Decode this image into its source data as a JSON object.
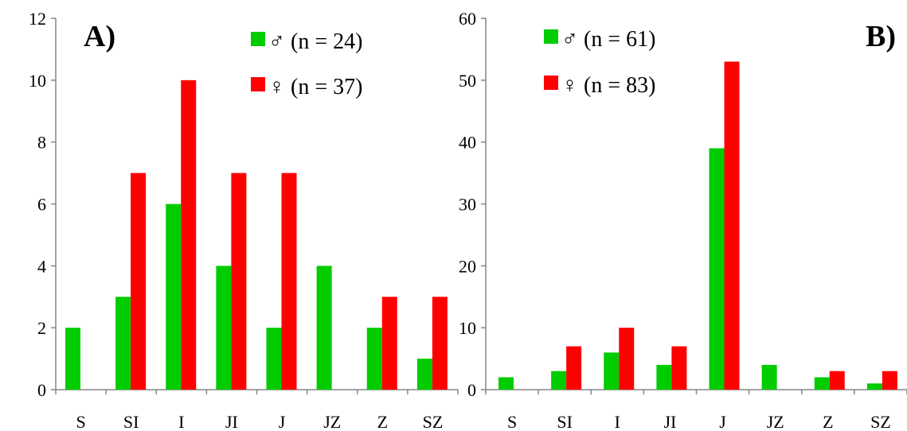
{
  "chart_data": [
    {
      "type": "bar",
      "panel_label": "A)",
      "categories": [
        "S",
        "SI",
        "I",
        "JI",
        "J",
        "JZ",
        "Z",
        "SZ"
      ],
      "series": [
        {
          "name": "♂ (n = 24)",
          "color": "#00cc00",
          "values": [
            2,
            3,
            6,
            4,
            2,
            4,
            2,
            1
          ]
        },
        {
          "name": "♀ (n = 37)",
          "color": "#ff0000",
          "values": [
            0,
            7,
            10,
            7,
            7,
            0,
            3,
            3
          ]
        }
      ],
      "ylim": [
        0,
        12
      ],
      "yticks": [
        "0",
        "2",
        "4",
        "6",
        "8",
        "10",
        "12"
      ],
      "xlabel": "",
      "ylabel": "",
      "grid": false,
      "legend_position": "top-right"
    },
    {
      "type": "bar",
      "panel_label": "B)",
      "categories": [
        "S",
        "SI",
        "I",
        "JI",
        "J",
        "JZ",
        "Z",
        "SZ"
      ],
      "series": [
        {
          "name": "♂ (n = 61)",
          "color": "#00cc00",
          "values": [
            2,
            3,
            6,
            4,
            39,
            4,
            2,
            1
          ]
        },
        {
          "name": "♀ (n = 83)",
          "color": "#ff0000",
          "values": [
            0,
            7,
            10,
            7,
            53,
            0,
            3,
            3
          ]
        }
      ],
      "ylim": [
        0,
        60
      ],
      "yticks": [
        "0",
        "10",
        "20",
        "30",
        "40",
        "50",
        "60"
      ],
      "xlabel": "",
      "ylabel": "",
      "grid": false,
      "legend_position": "top-left"
    }
  ]
}
